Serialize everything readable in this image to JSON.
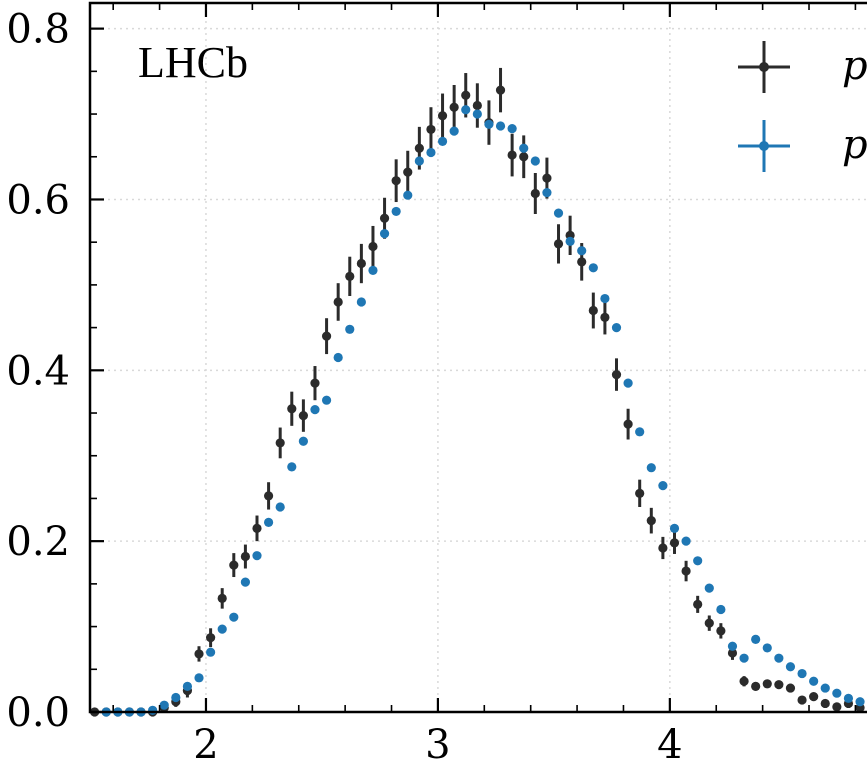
{
  "chart_data": {
    "type": "scatter",
    "title": "",
    "annotation": "LHCb",
    "xlabel": "",
    "ylabel": "",
    "xlim": [
      1.5,
      4.85
    ],
    "ylim": [
      0.0,
      0.83
    ],
    "x_ticks": [
      2,
      3,
      4
    ],
    "x_tick_labels": [
      "2",
      "3",
      "4"
    ],
    "y_ticks": [
      0.0,
      0.2,
      0.4,
      0.6,
      0.8
    ],
    "y_tick_labels": [
      "0.0",
      "0.2",
      "0.4",
      "0.6",
      "0.8"
    ],
    "grid": true,
    "legend_position": "top-right",
    "series": [
      {
        "name": "p",
        "color": "#2b2b2b",
        "error_bars": true,
        "x": [
          1.52,
          1.57,
          1.62,
          1.67,
          1.72,
          1.77,
          1.82,
          1.87,
          1.92,
          1.97,
          2.02,
          2.07,
          2.12,
          2.17,
          2.22,
          2.27,
          2.32,
          2.37,
          2.42,
          2.47,
          2.52,
          2.57,
          2.62,
          2.67,
          2.72,
          2.77,
          2.82,
          2.87,
          2.92,
          2.97,
          3.02,
          3.07,
          3.12,
          3.17,
          3.22,
          3.27,
          3.32,
          3.37,
          3.42,
          3.47,
          3.52,
          3.57,
          3.62,
          3.67,
          3.72,
          3.77,
          3.82,
          3.87,
          3.92,
          3.97,
          4.02,
          4.07,
          4.12,
          4.17,
          4.22,
          4.27,
          4.32,
          4.37,
          4.42,
          4.47,
          4.52,
          4.57,
          4.62,
          4.67,
          4.72,
          4.77,
          4.82
        ],
        "y": [
          0.0,
          0.0,
          0.0,
          0.0,
          0.0,
          0.0,
          0.005,
          0.012,
          0.025,
          0.068,
          0.087,
          0.133,
          0.172,
          0.182,
          0.215,
          0.253,
          0.315,
          0.355,
          0.347,
          0.385,
          0.44,
          0.48,
          0.51,
          0.525,
          0.545,
          0.578,
          0.622,
          0.632,
          0.66,
          0.682,
          0.698,
          0.708,
          0.722,
          0.71,
          0.69,
          0.728,
          0.652,
          0.65,
          0.607,
          0.625,
          0.548,
          0.558,
          0.527,
          0.47,
          0.462,
          0.395,
          0.337,
          0.256,
          0.224,
          0.192,
          0.198,
          0.165,
          0.126,
          0.104,
          0.095,
          0.069,
          0.036,
          0.03,
          0.033,
          0.032,
          0.028,
          0.014,
          0.018,
          0.01,
          0.006,
          0.01,
          0.005
        ],
        "err": [
          0.002,
          0.002,
          0.002,
          0.002,
          0.002,
          0.003,
          0.004,
          0.006,
          0.008,
          0.009,
          0.011,
          0.012,
          0.014,
          0.014,
          0.015,
          0.016,
          0.018,
          0.02,
          0.019,
          0.02,
          0.021,
          0.022,
          0.023,
          0.023,
          0.024,
          0.024,
          0.025,
          0.025,
          0.025,
          0.026,
          0.026,
          0.026,
          0.026,
          0.026,
          0.026,
          0.026,
          0.025,
          0.025,
          0.024,
          0.024,
          0.023,
          0.023,
          0.022,
          0.021,
          0.02,
          0.019,
          0.018,
          0.016,
          0.015,
          0.013,
          0.013,
          0.012,
          0.01,
          0.009,
          0.009,
          0.008,
          0.006,
          0.005,
          0.005,
          0.005,
          0.005,
          0.004,
          0.004,
          0.003,
          0.003,
          0.003,
          0.002
        ]
      },
      {
        "name": "p",
        "color": "#1f77b4",
        "error_bars": true,
        "x": [
          1.57,
          1.62,
          1.67,
          1.72,
          1.77,
          1.82,
          1.87,
          1.92,
          1.97,
          2.02,
          2.07,
          2.12,
          2.17,
          2.22,
          2.27,
          2.32,
          2.37,
          2.42,
          2.47,
          2.52,
          2.57,
          2.62,
          2.67,
          2.72,
          2.77,
          2.82,
          2.87,
          2.92,
          2.97,
          3.02,
          3.07,
          3.12,
          3.17,
          3.22,
          3.27,
          3.32,
          3.37,
          3.42,
          3.47,
          3.52,
          3.57,
          3.62,
          3.67,
          3.72,
          3.77,
          3.82,
          3.87,
          3.92,
          3.97,
          4.02,
          4.07,
          4.12,
          4.17,
          4.22,
          4.27,
          4.32,
          4.37,
          4.42,
          4.47,
          4.52,
          4.57,
          4.62,
          4.67,
          4.72,
          4.77,
          4.82
        ],
        "y": [
          0.0,
          0.0,
          0.0,
          0.0,
          0.002,
          0.008,
          0.017,
          0.03,
          0.04,
          0.07,
          0.097,
          0.111,
          0.152,
          0.183,
          0.222,
          0.24,
          0.287,
          0.317,
          0.354,
          0.365,
          0.415,
          0.448,
          0.48,
          0.517,
          0.56,
          0.586,
          0.605,
          0.645,
          0.655,
          0.668,
          0.68,
          0.705,
          0.7,
          0.688,
          0.686,
          0.683,
          0.66,
          0.645,
          0.608,
          0.584,
          0.551,
          0.54,
          0.52,
          0.484,
          0.45,
          0.385,
          0.328,
          0.286,
          0.265,
          0.215,
          0.2,
          0.177,
          0.145,
          0.12,
          0.077,
          0.063,
          0.085,
          0.075,
          0.063,
          0.053,
          0.045,
          0.036,
          0.028,
          0.022,
          0.016,
          0.012
        ]
      }
    ]
  }
}
